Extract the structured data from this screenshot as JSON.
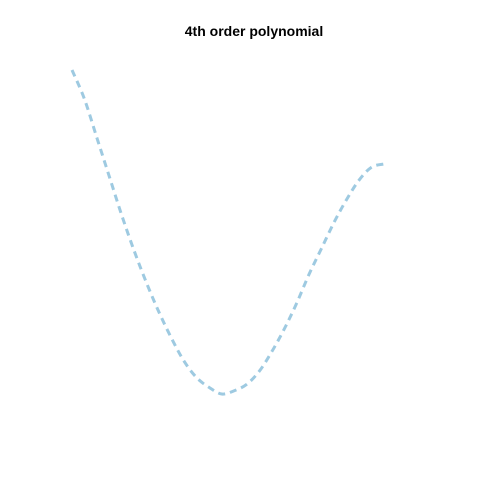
{
  "chart_data": {
    "type": "line",
    "title": "4th order polynomial",
    "xlabel": "",
    "ylabel": "",
    "axes_visible": false,
    "grid": false,
    "legend": "none",
    "xlim": [
      0,
      1
    ],
    "ylim": [
      0,
      1
    ],
    "series": [
      {
        "color": "#9ecae1",
        "line_style": "dashed",
        "x": [
          0.0,
          0.04,
          0.08,
          0.12,
          0.16,
          0.2,
          0.24,
          0.28,
          0.32,
          0.36,
          0.4,
          0.44,
          0.48,
          0.52,
          0.56,
          0.6,
          0.64,
          0.68,
          0.72,
          0.76,
          0.8,
          0.84,
          0.88,
          0.92,
          0.96,
          1.0
        ],
        "y": [
          1.0,
          0.91,
          0.79,
          0.67,
          0.55,
          0.44,
          0.34,
          0.25,
          0.17,
          0.1,
          0.05,
          0.02,
          0.0,
          0.01,
          0.03,
          0.07,
          0.13,
          0.2,
          0.28,
          0.37,
          0.45,
          0.53,
          0.6,
          0.66,
          0.7,
          0.71
        ]
      }
    ]
  }
}
